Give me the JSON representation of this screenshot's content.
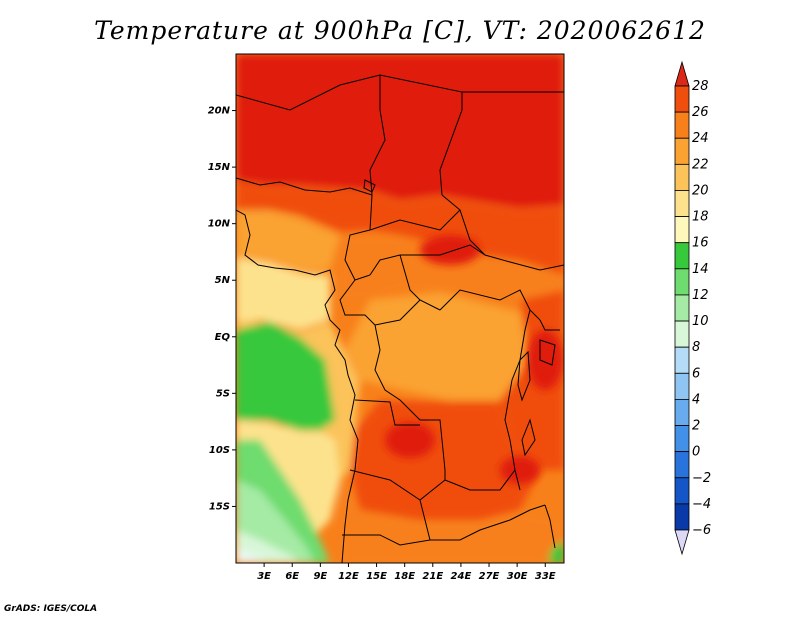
{
  "title": "Temperature at 900hPa [C], VT: 2020062612",
  "credit": "GrADS: IGES/COLA",
  "map": {
    "lon_range": [
      0,
      35
    ],
    "lat_range": [
      -20,
      25
    ],
    "lon_ticks": [
      {
        "value": 3,
        "label": "3E"
      },
      {
        "value": 6,
        "label": "6E"
      },
      {
        "value": 9,
        "label": "9E"
      },
      {
        "value": 12,
        "label": "12E"
      },
      {
        "value": 15,
        "label": "15E"
      },
      {
        "value": 18,
        "label": "18E"
      },
      {
        "value": 21,
        "label": "21E"
      },
      {
        "value": 24,
        "label": "24E"
      },
      {
        "value": 27,
        "label": "27E"
      },
      {
        "value": 30,
        "label": "30E"
      },
      {
        "value": 33,
        "label": "33E"
      }
    ],
    "lat_ticks": [
      {
        "value": 20,
        "label": "20N"
      },
      {
        "value": 15,
        "label": "15N"
      },
      {
        "value": 10,
        "label": "10N"
      },
      {
        "value": 5,
        "label": "5N"
      },
      {
        "value": 0,
        "label": "EQ"
      },
      {
        "value": -5,
        "label": "5S"
      },
      {
        "value": -10,
        "label": "10S"
      },
      {
        "value": -15,
        "label": "15S"
      }
    ]
  },
  "colorbar": {
    "levels": [
      "28",
      "26",
      "24",
      "22",
      "20",
      "18",
      "16",
      "14",
      "12",
      "10",
      "8",
      "6",
      "4",
      "2",
      "0",
      "−2",
      "−4",
      "−6"
    ],
    "colors": [
      "#e41a1c",
      "#f04e0c",
      "#f8801a",
      "#faa232",
      "#fbc35a",
      "#fde28d",
      "#fef8bb",
      "#37c83c",
      "#6edc6e",
      "#a5eaa5",
      "#d8f7d8",
      "#b5dcf7",
      "#8ec5f3",
      "#68acef",
      "#4290e7",
      "#2874dc",
      "#1456c8",
      "#0a3aa8",
      "#08216e"
    ],
    "top_triangle_color": "#dc2818",
    "bottom_triangle_color": "#dcd8f5"
  }
}
